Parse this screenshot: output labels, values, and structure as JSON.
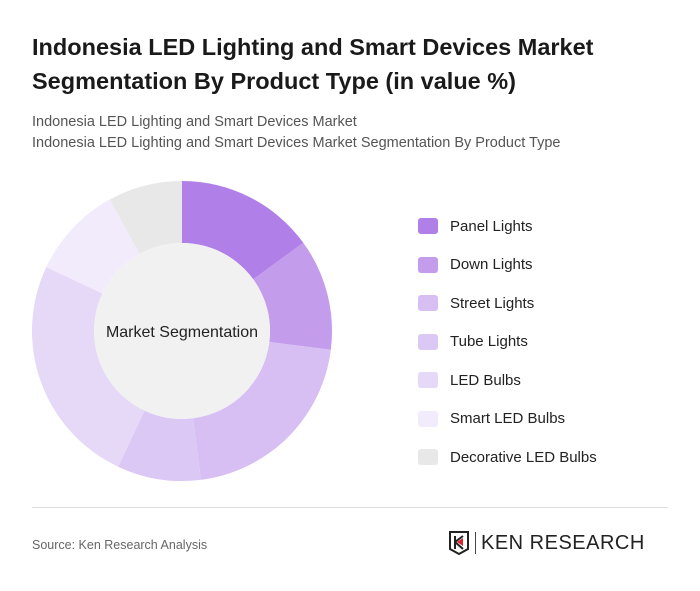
{
  "title": "Indonesia LED Lighting and Smart Devices Market Segmentation By Product Type (in value %)",
  "subtitle1": "Indonesia LED Lighting and Smart Devices Market",
  "subtitle2": "Indonesia LED Lighting and Smart Devices Market Segmentation By Product Type",
  "source": "Source: Ken Research Analysis",
  "logo_text": "KEN RESEARCH",
  "chart_data": {
    "type": "pie",
    "donut": true,
    "center_label": "Market Segmentation",
    "legend_position": "right",
    "categories": [
      "Panel Lights",
      "Down Lights",
      "Street Lights",
      "Tube Lights",
      "LED Bulbs",
      "Smart LED Bulbs",
      "Decorative LED Bulbs"
    ],
    "values": [
      15,
      12,
      21,
      9,
      25,
      10,
      8
    ],
    "colors": [
      "#b07fe8",
      "#c49cec",
      "#d7bff4",
      "#dcc8f4",
      "#e6d9f7",
      "#f1ebfb",
      "#e8e8e8"
    ]
  }
}
